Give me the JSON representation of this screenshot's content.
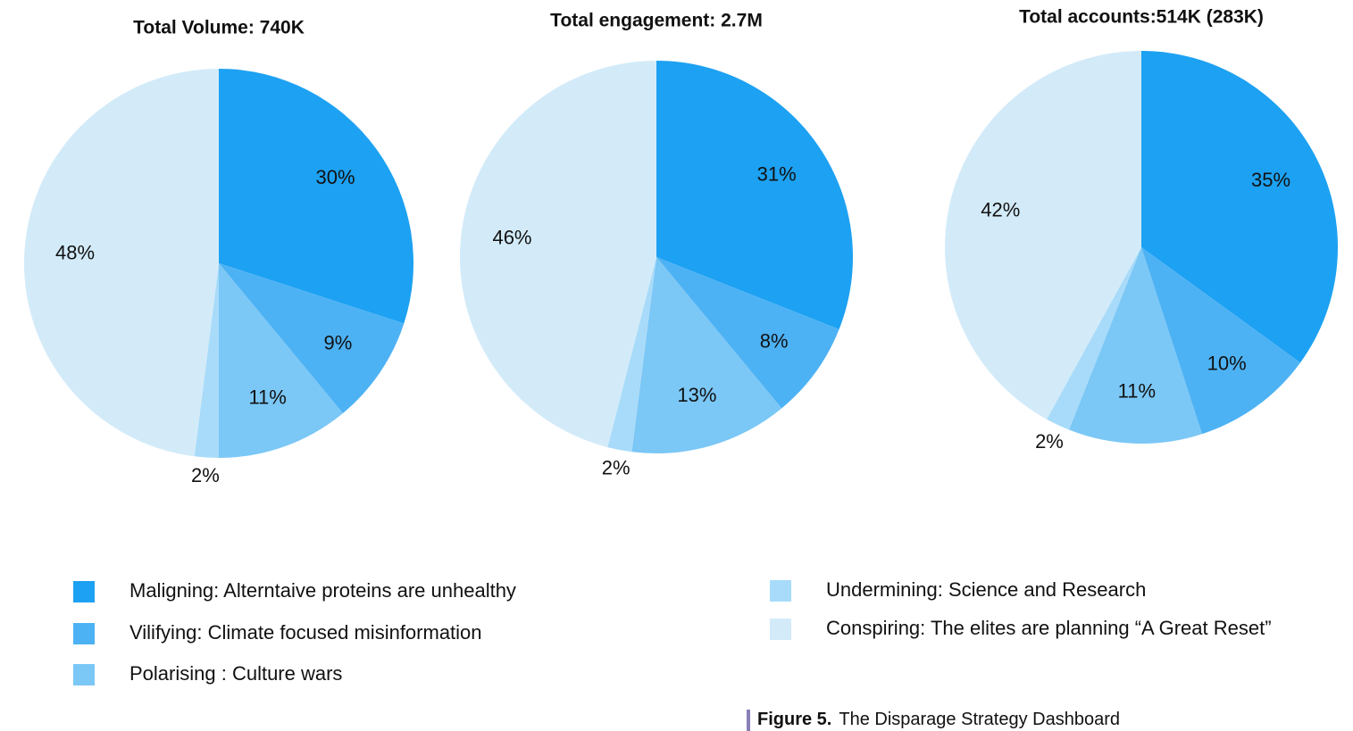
{
  "chart_data": [
    {
      "type": "pie",
      "title": "Total Volume: 740K",
      "values": [
        30,
        9,
        11,
        2,
        48
      ],
      "value_labels": [
        "30%",
        "9%",
        "11%",
        "2%",
        "48%"
      ]
    },
    {
      "type": "pie",
      "title": "Total engagement: 2.7M",
      "values": [
        31,
        8,
        13,
        2,
        46
      ],
      "value_labels": [
        "31%",
        "8%",
        "13%",
        "2%",
        "46%"
      ]
    },
    {
      "type": "pie",
      "title": "Total accounts:514K (283K)",
      "values": [
        35,
        10,
        11,
        2,
        42
      ],
      "value_labels": [
        "35%",
        "10%",
        "11%",
        "2%",
        "42%"
      ]
    }
  ],
  "legend": [
    {
      "name": "Maligning: Alterntaive proteins are unhealthy",
      "color": "#1da1f2"
    },
    {
      "name": "Vilifying: Climate focused misinformation",
      "color": "#4db2f4"
    },
    {
      "name": "Polarising : Culture wars",
      "color": "#7bc7f6"
    },
    {
      "name": "Undermining: Science and Research",
      "color": "#a8dbf9"
    },
    {
      "name": "Conspiring: The elites are planning “A Great Reset”",
      "color": "#d3ebf9"
    }
  ],
  "caption": {
    "label": "Figure 5.",
    "text": "The Disparage Strategy Dashboard"
  }
}
